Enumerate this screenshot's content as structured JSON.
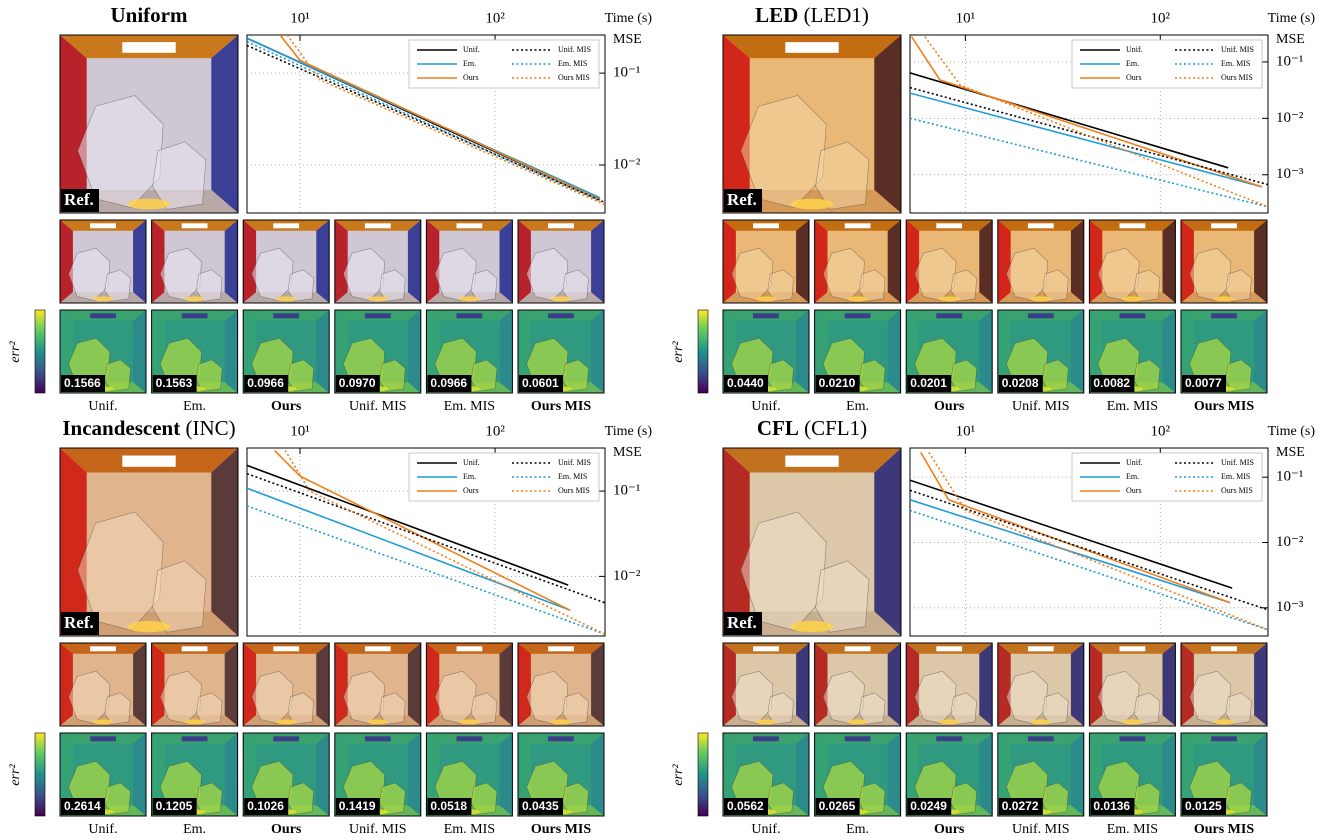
{
  "panels": [
    {
      "title": "Uniform",
      "reference_label": "Ref.",
      "colorbar_label": "err²",
      "chart": {
        "type": "line",
        "xlabel": "Time (s)",
        "ylabel": "MSE",
        "xscale": "log",
        "yscale": "log",
        "grid": true,
        "legend": "upper right",
        "xlim": [
          5.35,
          366
        ],
        "ylim": [
          0.003,
          0.26
        ],
        "xticks": [
          {
            "value": 10,
            "label": "10¹"
          },
          {
            "value": 100,
            "label": "10²"
          }
        ],
        "yticks": [
          {
            "value": 0.1,
            "label": "10⁻¹"
          },
          {
            "value": 0.01,
            "label": "10⁻²"
          }
        ],
        "series": [
          {
            "name": "Unif.",
            "color": "#000000",
            "dash": false,
            "x": [
              5.35,
              345
            ],
            "values": [
              0.24,
              0.0042
            ]
          },
          {
            "name": "Em.",
            "color": "#1f9bd7",
            "dash": false,
            "x": [
              5.35,
              345
            ],
            "values": [
              0.24,
              0.0044
            ]
          },
          {
            "name": "Ours",
            "color": "#f07f1a",
            "dash": false,
            "x": [
              7.9,
              10,
              345
            ],
            "values": [
              0.26,
              0.138,
              0.0042
            ]
          },
          {
            "name": "Unif. MIS",
            "color": "#000000",
            "dash": true,
            "x": [
              5.35,
              366
            ],
            "values": [
              0.2,
              0.0039
            ]
          },
          {
            "name": "Em. MIS",
            "color": "#1f9bd7",
            "dash": true,
            "x": [
              5.35,
              345
            ],
            "values": [
              0.22,
              0.004
            ]
          },
          {
            "name": "Ours MIS",
            "color": "#f07f1a",
            "dash": true,
            "x": [
              8.6,
              12.7,
              366
            ],
            "values": [
              0.26,
              0.084,
              0.0037
            ]
          }
        ]
      },
      "columns": [
        "Unif.",
        "Em.",
        "Ours",
        "Unif. MIS",
        "Em. MIS",
        "Ours MIS"
      ],
      "errors": [
        "0.1566",
        "0.1563",
        "0.0966",
        "0.0970",
        "0.0966",
        "0.0601"
      ]
    },
    {
      "title": "LED",
      "subtitle": "(LED1)",
      "reference_label": "Ref.",
      "colorbar_label": "err²",
      "chart": {
        "type": "line",
        "xlabel": "Time (s)",
        "ylabel": "MSE",
        "xscale": "log",
        "yscale": "log",
        "grid": true,
        "legend": "upper right",
        "xlim": [
          5.2,
          357
        ],
        "ylim": [
          0.00021,
          0.3
        ],
        "xticks": [
          {
            "value": 10,
            "label": "10¹"
          },
          {
            "value": 100,
            "label": "10²"
          }
        ],
        "yticks": [
          {
            "value": 0.1,
            "label": "10⁻¹"
          },
          {
            "value": 0.01,
            "label": "10⁻²"
          },
          {
            "value": 0.001,
            "label": "10⁻³"
          }
        ],
        "series": [
          {
            "name": "Unif.",
            "color": "#000000",
            "dash": false,
            "x": [
              5.2,
              223
            ],
            "values": [
              0.064,
              0.00133
            ]
          },
          {
            "name": "Em.",
            "color": "#1f9bd7",
            "dash": false,
            "x": [
              5.2,
              333
            ],
            "values": [
              0.028,
              0.00061
            ]
          },
          {
            "name": "Ours",
            "color": "#f07f1a",
            "dash": false,
            "x": [
              5.3,
              7.4,
              333
            ],
            "values": [
              0.28,
              0.048,
              0.00061
            ]
          },
          {
            "name": "Unif. MIS",
            "color": "#000000",
            "dash": true,
            "x": [
              5.2,
              357
            ],
            "values": [
              0.035,
              0.00067
            ]
          },
          {
            "name": "Em. MIS",
            "color": "#1f9bd7",
            "dash": true,
            "x": [
              5.2,
              357
            ],
            "values": [
              0.01,
              0.00027
            ]
          },
          {
            "name": "Ours MIS",
            "color": "#f07f1a",
            "dash": true,
            "x": [
              6.2,
              9.4,
              357
            ],
            "values": [
              0.28,
              0.039,
              0.00027
            ]
          }
        ]
      },
      "columns": [
        "Unif.",
        "Em.",
        "Ours",
        "Unif. MIS",
        "Em. MIS",
        "Ours MIS"
      ],
      "errors": [
        "0.0440",
        "0.0210",
        "0.0201",
        "0.0208",
        "0.0082",
        "0.0077"
      ]
    },
    {
      "title": "Incandescent",
      "subtitle": "(INC)",
      "reference_label": "Ref.",
      "colorbar_label": "err²",
      "chart": {
        "type": "line",
        "xlabel": "Time (s)",
        "ylabel": "MSE",
        "xscale": "log",
        "yscale": "log",
        "grid": true,
        "legend": "upper right",
        "xlim": [
          5.35,
          366
        ],
        "ylim": [
          0.002,
          0.32
        ],
        "xticks": [
          {
            "value": 10,
            "label": "10¹"
          },
          {
            "value": 100,
            "label": "10²"
          }
        ],
        "yticks": [
          {
            "value": 0.1,
            "label": "10⁻¹"
          },
          {
            "value": 0.01,
            "label": "10⁻²"
          }
        ],
        "series": [
          {
            "name": "Unif.",
            "color": "#000000",
            "dash": false,
            "x": [
              5.35,
              237
            ],
            "values": [
              0.2,
              0.0079
            ]
          },
          {
            "name": "Em.",
            "color": "#1f9bd7",
            "dash": false,
            "x": [
              5.35,
              243
            ],
            "values": [
              0.108,
              0.004
            ]
          },
          {
            "name": "Ours",
            "color": "#f07f1a",
            "dash": false,
            "x": [
              7.4,
              10,
              243
            ],
            "values": [
              0.3,
              0.15,
              0.004
            ]
          },
          {
            "name": "Unif. MIS",
            "color": "#000000",
            "dash": true,
            "x": [
              5.35,
              366
            ],
            "values": [
              0.16,
              0.0049
            ]
          },
          {
            "name": "Em. MIS",
            "color": "#1f9bd7",
            "dash": true,
            "x": [
              5.35,
              366
            ],
            "values": [
              0.067,
              0.0021
            ]
          },
          {
            "name": "Ours MIS",
            "color": "#f07f1a",
            "dash": true,
            "x": [
              8.4,
              11.2,
              366
            ],
            "values": [
              0.3,
              0.1,
              0.0021
            ]
          }
        ]
      },
      "columns": [
        "Unif.",
        "Em.",
        "Ours",
        "Unif. MIS",
        "Em. MIS",
        "Ours MIS"
      ],
      "errors": [
        "0.2614",
        "0.1205",
        "0.1026",
        "0.1419",
        "0.0518",
        "0.0435"
      ]
    },
    {
      "title": "CFL",
      "subtitle": "(CFL1)",
      "reference_label": "Ref.",
      "colorbar_label": "err²",
      "chart": {
        "type": "line",
        "xlabel": "Time (s)",
        "ylabel": "MSE",
        "xscale": "log",
        "yscale": "log",
        "grid": true,
        "legend": "upper right",
        "xlim": [
          5.2,
          357
        ],
        "ylim": [
          0.00037,
          0.28
        ],
        "xticks": [
          {
            "value": 10,
            "label": "10¹"
          },
          {
            "value": 100,
            "label": "10²"
          }
        ],
        "yticks": [
          {
            "value": 0.1,
            "label": "10⁻¹"
          },
          {
            "value": 0.01,
            "label": "10⁻²"
          },
          {
            "value": 0.001,
            "label": "10⁻³"
          }
        ],
        "series": [
          {
            "name": "Unif.",
            "color": "#000000",
            "dash": false,
            "x": [
              5.2,
              234
            ],
            "values": [
              0.09,
              0.002
            ]
          },
          {
            "name": "Em.",
            "color": "#1f9bd7",
            "dash": false,
            "x": [
              5.2,
              228
            ],
            "values": [
              0.045,
              0.0012
            ]
          },
          {
            "name": "Ours",
            "color": "#f07f1a",
            "dash": false,
            "x": [
              5.9,
              8.2,
              228
            ],
            "values": [
              0.24,
              0.045,
              0.0012
            ]
          },
          {
            "name": "Unif. MIS",
            "color": "#000000",
            "dash": true,
            "x": [
              5.2,
              357
            ],
            "values": [
              0.063,
              0.00093
            ]
          },
          {
            "name": "Em. MIS",
            "color": "#1f9bd7",
            "dash": true,
            "x": [
              5.2,
              357
            ],
            "values": [
              0.031,
              0.00046
            ]
          },
          {
            "name": "Ours MIS",
            "color": "#f07f1a",
            "dash": true,
            "x": [
              6.5,
              10,
              357
            ],
            "values": [
              0.24,
              0.031,
              0.00046
            ]
          }
        ]
      },
      "columns": [
        "Unif.",
        "Em.",
        "Ours",
        "Unif. MIS",
        "Em. MIS",
        "Ours MIS"
      ],
      "errors": [
        "0.0562",
        "0.0265",
        "0.0249",
        "0.0272",
        "0.0136",
        "0.0125"
      ]
    }
  ]
}
